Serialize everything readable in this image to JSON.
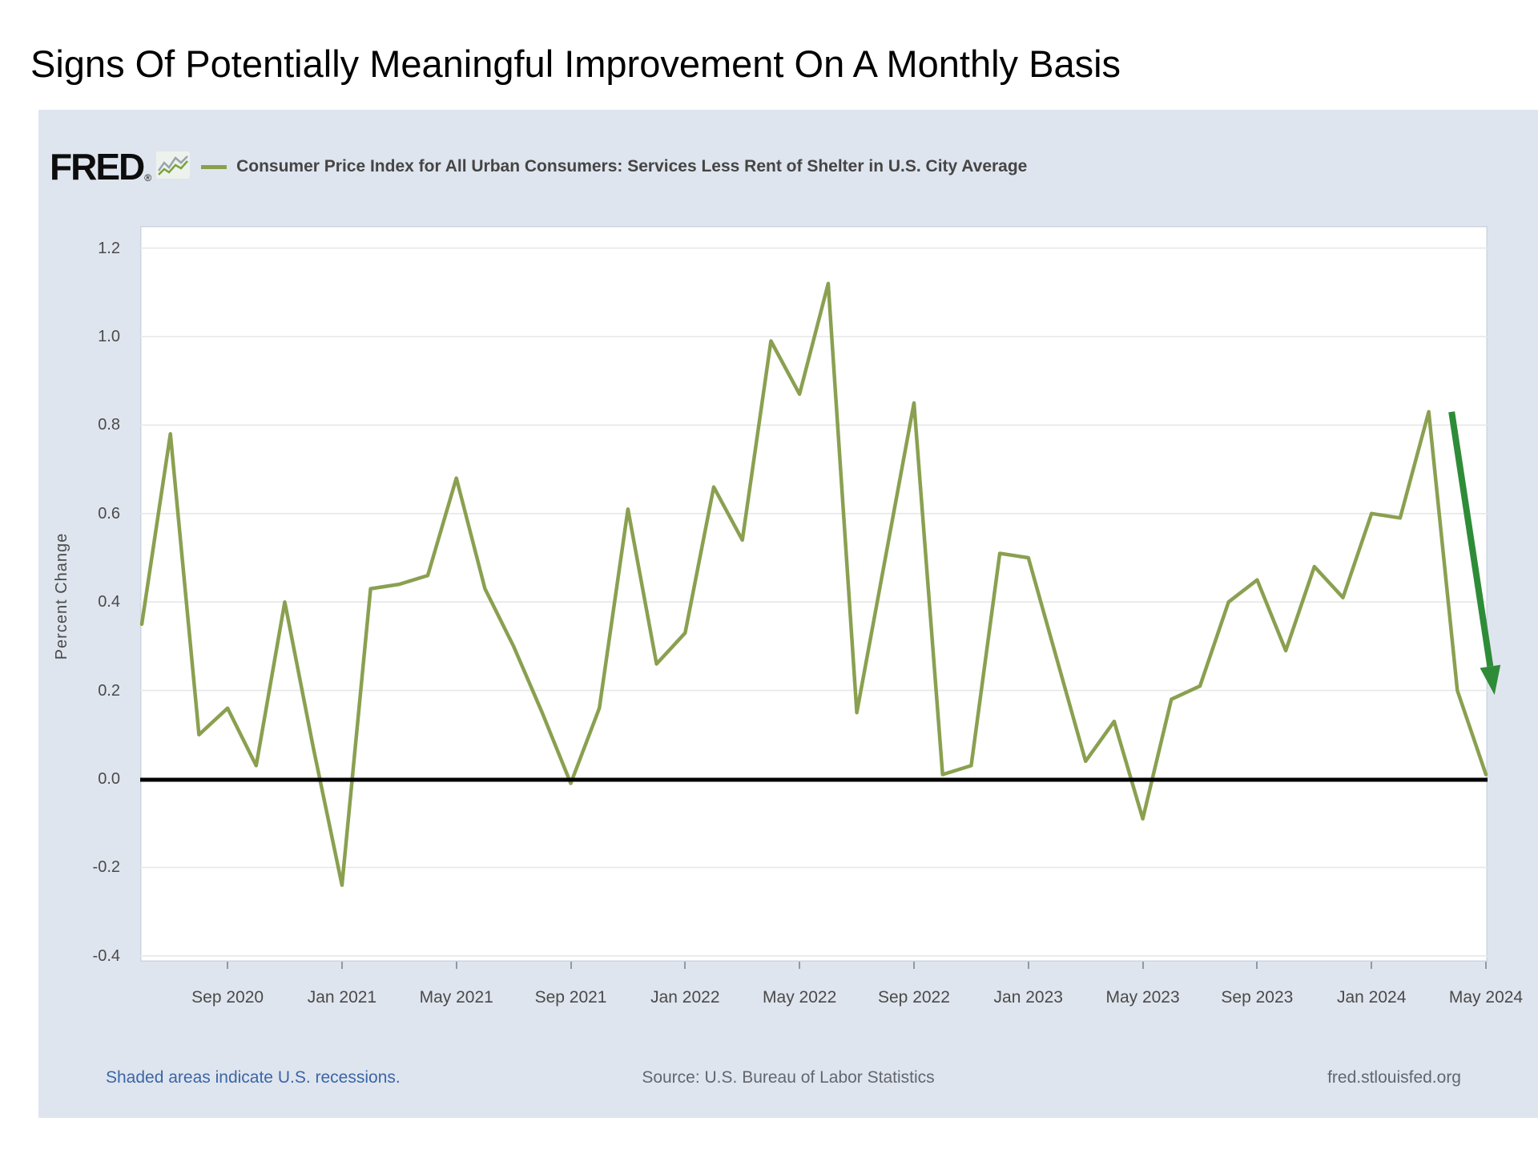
{
  "slide": {
    "title": "Signs Of Potentially Meaningful Improvement On A Monthly Basis"
  },
  "chart": {
    "brand": "FRED",
    "reg_mark": "®",
    "legend_label": "Consumer Price Index for All Urban Consumers: Services Less Rent of Shelter in U.S. City Average",
    "ylabel": "Percent Change",
    "footer_left": "Shaded areas indicate U.S. recessions.",
    "footer_center": "Source: U.S. Bureau of Labor Statistics",
    "footer_right": "fred.stlouisfed.org",
    "colors": {
      "panel_background": "#dfe5ee",
      "plot_background": "#ffffff",
      "line": "#8aa050",
      "arrow": "#2e8c38",
      "gridline": "#e7e7e7",
      "zero_line": "#000000",
      "footer_link": "#3a66a7",
      "axis_text": "#4a4a4a"
    }
  },
  "chart_data": {
    "type": "line",
    "title": "Consumer Price Index for All Urban Consumers: Services Less Rent of Shelter in U.S. City Average",
    "ylabel": "Percent Change",
    "frequency": "monthly",
    "x_start": "Jun 2020",
    "x_end": "May 2024",
    "ylim": [
      -0.413,
      1.25
    ],
    "grid": true,
    "legend_position": "top",
    "y_ticks": [
      1.2,
      1.0,
      0.8,
      0.6,
      0.4,
      0.2,
      0.0,
      -0.2,
      -0.4
    ],
    "y_tick_labels": [
      "1.2",
      "1.0",
      "0.8",
      "0.6",
      "0.4",
      "0.2",
      "0.0",
      "-0.2",
      "-0.4"
    ],
    "x_tick_indices": [
      3,
      7,
      11,
      15,
      19,
      23,
      27,
      31,
      35,
      39,
      43,
      47
    ],
    "x_tick_labels": [
      "Sep 2020",
      "Jan 2021",
      "May 2021",
      "Sep 2021",
      "Jan 2022",
      "May 2022",
      "Sep 2022",
      "Jan 2023",
      "May 2023",
      "Sep 2023",
      "Jan 2024",
      "May 2024"
    ],
    "values": [
      0.35,
      0.78,
      0.1,
      0.16,
      0.03,
      0.4,
      0.07,
      -0.24,
      0.43,
      0.44,
      0.46,
      0.68,
      0.43,
      0.3,
      0.15,
      -0.01,
      0.16,
      0.61,
      0.26,
      0.33,
      0.66,
      0.54,
      0.99,
      0.87,
      1.12,
      0.15,
      0.5,
      0.85,
      0.01,
      0.03,
      0.51,
      0.5,
      0.27,
      0.04,
      0.13,
      -0.09,
      0.18,
      0.21,
      0.4,
      0.45,
      0.29,
      0.48,
      0.41,
      0.6,
      0.59,
      0.83,
      0.2,
      0.01
    ],
    "zero_line_value": 0.0,
    "annotation": {
      "type": "arrow",
      "direction": "down",
      "color": "#2e8c38",
      "from": {
        "month_index": 45.8,
        "value": 0.83
      },
      "to": {
        "month_index": 47.3,
        "value": 0.19
      }
    }
  }
}
